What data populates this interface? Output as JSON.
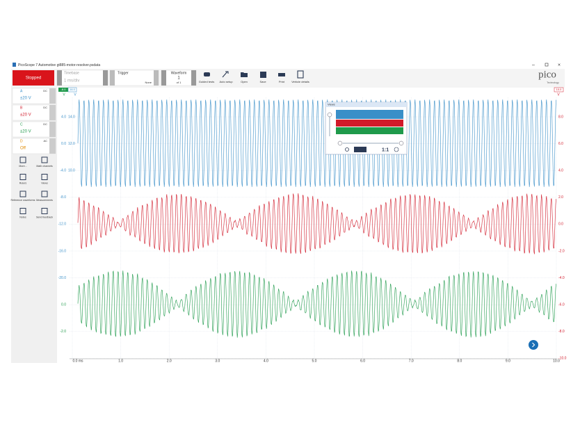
{
  "window": {
    "title": "PicoScope 7 Automotive gt885-motor-resolver.psdata"
  },
  "toolbar": {
    "status": "Stopped",
    "timebase_label": "Timebase",
    "timebase": "1 ms/div",
    "trigger_label": "Trigger",
    "trigger_mode": "None",
    "waveform_label": "Waveform",
    "waveform_index": "1",
    "waveform_of": "of 1",
    "buttons": [
      "Guided tests",
      "Auto setup",
      "Open",
      "Save",
      "Print",
      "Vehicle details"
    ],
    "logo": "pico",
    "logo_sub": "Technology"
  },
  "channels": [
    {
      "name": "A",
      "coupling": "DC",
      "range": "±20 V"
    },
    {
      "name": "B",
      "coupling": "DC",
      "range": "±20 V"
    },
    {
      "name": "C",
      "coupling": "DC",
      "range": "±20 V"
    },
    {
      "name": "D",
      "coupling": "AC",
      "range": "Off"
    }
  ],
  "tools": [
    "More...",
    "Math channels",
    "Rulers",
    "Views",
    "Reference waveforms",
    "Measurements",
    "Notes",
    "Send feedback"
  ],
  "plot": {
    "x_labels": [
      "0.0 ms",
      "1.0",
      "2.0",
      "3.0",
      "4.0",
      "5.0",
      "6.0",
      "7.0",
      "8.0",
      "9.0",
      "10.0"
    ],
    "left_labels": [
      "4.0",
      "0.0",
      "-4.0",
      "-8.0",
      "-12.0",
      "-16.0",
      "-20.0",
      "0.0",
      "-2.0"
    ],
    "left_labels_2": [
      "14.0",
      "12.0",
      "10.0"
    ],
    "right_labels": [
      "8.0",
      "6.0",
      "4.0",
      "2.0",
      "0.0",
      "-2.0",
      "-4.0",
      "-6.0",
      "-8.0",
      "-10.0"
    ],
    "unit": "V",
    "top_left_marker": "-8.0",
    "top_left_marker_2": "16.0",
    "top_right_marker": "10.0"
  },
  "views_popup": {
    "title": "Views",
    "ratio": "1:1"
  }
}
